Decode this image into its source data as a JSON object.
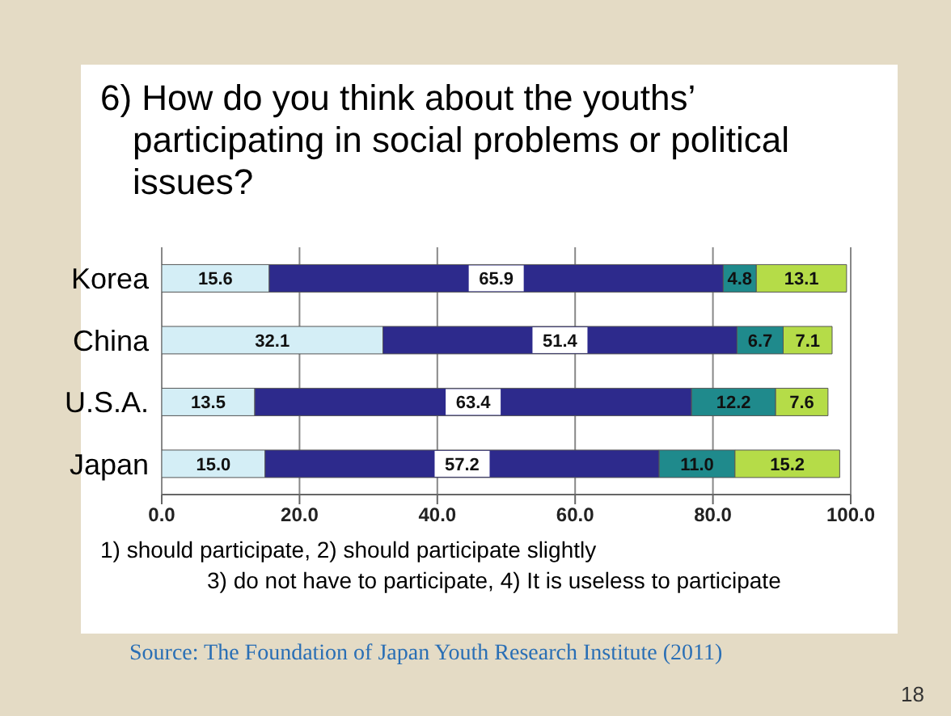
{
  "chart_data": {
    "type": "bar",
    "orientation": "horizontal",
    "stacked": true,
    "title": "6) How do you think about the youths’ participating in social problems or political issues?",
    "categories": [
      "Korea",
      "China",
      "U.S.A.",
      "Japan"
    ],
    "series": [
      {
        "color": "#d4eef6",
        "values": [
          15.6,
          32.1,
          13.5,
          15.0
        ],
        "value_labels": [
          "15.6",
          "32.1",
          "13.5",
          "15.0"
        ]
      },
      {
        "color": "#2d2a8c",
        "values": [
          65.9,
          51.4,
          63.4,
          57.2
        ],
        "value_labels": [
          "65.9",
          "51.4",
          "63.4",
          "57.2"
        ]
      },
      {
        "color": "#1f8a8c",
        "values": [
          4.8,
          6.7,
          12.2,
          11.0
        ],
        "value_labels": [
          "4.8",
          "6.7",
          "12.2",
          "11.0"
        ]
      },
      {
        "color": "#b5dc48",
        "values": [
          13.1,
          7.1,
          7.6,
          15.2
        ],
        "value_labels": [
          "13.1",
          "7.1",
          "7.6",
          "15.2"
        ]
      }
    ],
    "xlim": [
      0,
      100
    ],
    "xticks": [
      {
        "value": 0,
        "label": "0.0"
      },
      {
        "value": 20,
        "label": "20.0"
      },
      {
        "value": 40,
        "label": "40.0"
      },
      {
        "value": 60,
        "label": "60.0"
      },
      {
        "value": 80,
        "label": "80.0"
      },
      {
        "value": 100,
        "label": "100.0"
      }
    ],
    "grid": "x",
    "annotations": [
      "1) should participate,  2) should participate slightly",
      "3) do not have to participate,   4) It is useless to participate",
      "Source:  The Foundation of Japan Youth Research Institute (2011)",
      "18"
    ]
  }
}
